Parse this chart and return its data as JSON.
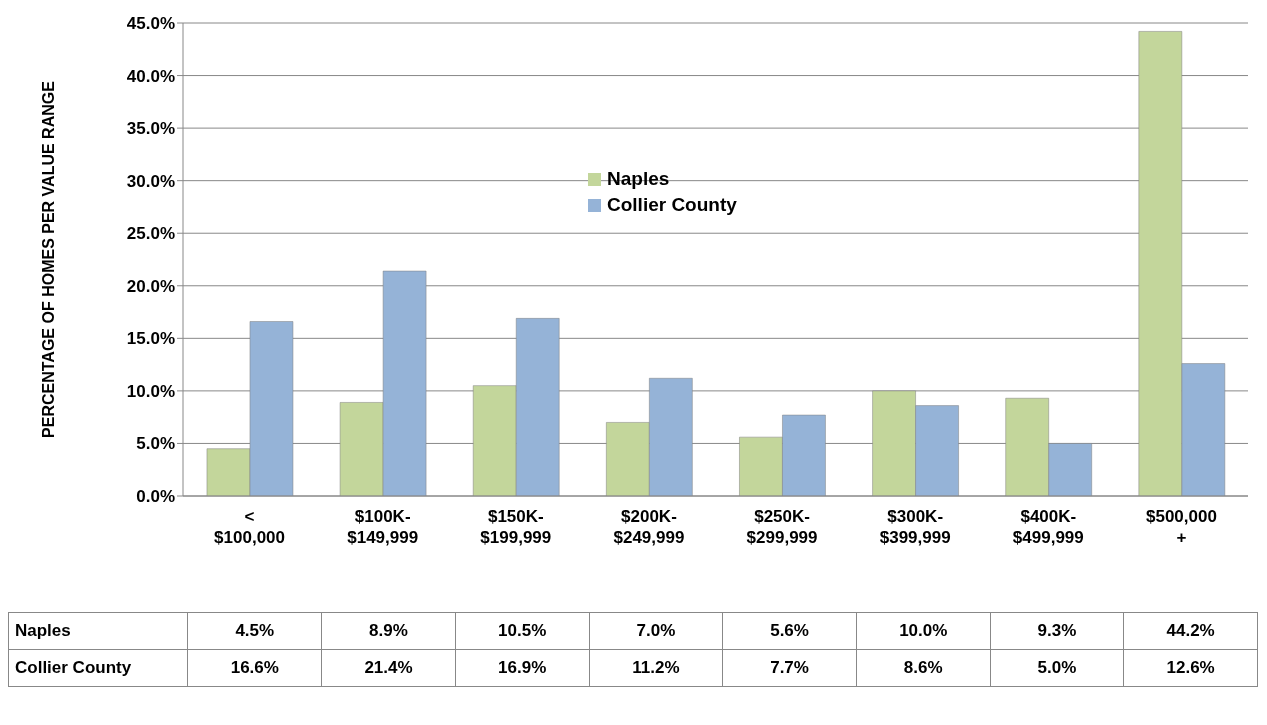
{
  "chart_data": {
    "type": "bar",
    "ylabel": "PERCENTAGE OF HOMES PER VALUE RANGE",
    "categories": [
      "<\n$100,000",
      "$100K-\n$149,999",
      "$150K-\n$199,999",
      "$200K-\n$249,999",
      "$250K-\n$299,999",
      "$300K-\n$399,999",
      "$400K-\n$499,999",
      "$500,000\n+"
    ],
    "series": [
      {
        "name": "Naples",
        "color": "#c3d69b",
        "values": [
          4.5,
          8.9,
          10.5,
          7.0,
          5.6,
          10.0,
          9.3,
          44.2
        ],
        "value_labels": [
          "4.5%",
          "8.9%",
          "10.5%",
          "7.0%",
          "5.6%",
          "10.0%",
          "9.3%",
          "44.2%"
        ]
      },
      {
        "name": "Collier County",
        "color": "#95b3d7",
        "values": [
          16.6,
          21.4,
          16.9,
          11.2,
          7.7,
          8.6,
          5.0,
          12.6
        ],
        "value_labels": [
          "16.6%",
          "21.4%",
          "16.9%",
          "11.2%",
          "7.7%",
          "8.6%",
          "5.0%",
          "12.6%"
        ]
      }
    ],
    "ylim": [
      0,
      45
    ],
    "yticks": [
      {
        "value": 0,
        "label": "0.0%"
      },
      {
        "value": 5,
        "label": "5.0%"
      },
      {
        "value": 10,
        "label": "10.0%"
      },
      {
        "value": 15,
        "label": "15.0%"
      },
      {
        "value": 20,
        "label": "20.0%"
      },
      {
        "value": 25,
        "label": "25.0%"
      },
      {
        "value": 30,
        "label": "30.0%"
      },
      {
        "value": 35,
        "label": "35.0%"
      },
      {
        "value": 40,
        "label": "40.0%"
      },
      {
        "value": 45,
        "label": "45.0%"
      }
    ],
    "grid": "y",
    "legend": "top"
  }
}
